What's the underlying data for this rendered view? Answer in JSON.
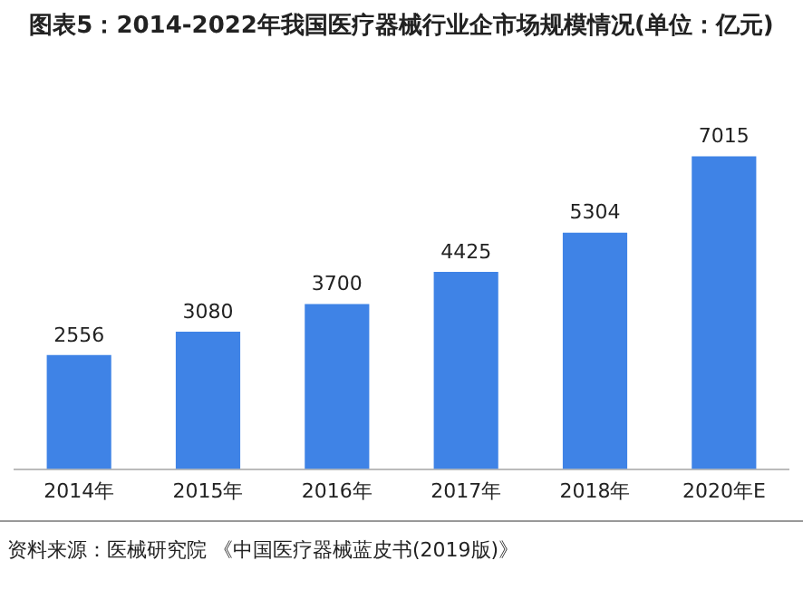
{
  "chart_data": {
    "type": "bar",
    "title": "图表5：2014-2022年我国医疗器械行业企市场规模情况(单位：亿元)",
    "categories": [
      "2014年",
      "2015年",
      "2016年",
      "2017年",
      "2018年",
      "2020年E"
    ],
    "values": [
      2556,
      3080,
      3700,
      4425,
      5304,
      7015
    ],
    "color": "#3f83e6",
    "data_labels": true,
    "grid": false,
    "legend": false,
    "annotations": [
      "资料来源：医械研究院 《中国医疗器械蓝皮书(2019版)》"
    ]
  }
}
